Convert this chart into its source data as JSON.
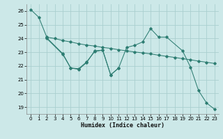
{
  "xlabel": "Humidex (Indice chaleur)",
  "xlim": [
    -0.5,
    23.5
  ],
  "ylim": [
    18.5,
    26.5
  ],
  "yticks": [
    19,
    20,
    21,
    22,
    23,
    24,
    25,
    26
  ],
  "xticks": [
    0,
    1,
    2,
    3,
    4,
    5,
    6,
    7,
    8,
    9,
    10,
    11,
    12,
    13,
    14,
    15,
    16,
    17,
    18,
    19,
    20,
    21,
    22,
    23
  ],
  "bg_color": "#cce8e8",
  "grid_color": "#aacfcf",
  "line_color": "#2d7d72",
  "line1_x": [
    0,
    1,
    2,
    3,
    4,
    5,
    6,
    7,
    8,
    9,
    10,
    11,
    12,
    13,
    14,
    15,
    16,
    17,
    18,
    19,
    20,
    21,
    22,
    23
  ],
  "line1_y": [
    26.1,
    25.55,
    24.1,
    24.0,
    23.85,
    23.75,
    23.62,
    23.52,
    23.45,
    23.35,
    23.28,
    23.18,
    23.1,
    23.02,
    22.95,
    22.88,
    22.78,
    22.7,
    22.62,
    22.53,
    22.45,
    22.35,
    22.27,
    22.18
  ],
  "line2_x": [
    2,
    4,
    5,
    6,
    7,
    8,
    9,
    10,
    11,
    12,
    13,
    14,
    15,
    16,
    17,
    19,
    20,
    21,
    22,
    23
  ],
  "line2_y": [
    24.05,
    22.9,
    21.85,
    21.8,
    22.3,
    23.05,
    23.15,
    21.35,
    21.85,
    23.35,
    23.5,
    23.75,
    24.72,
    24.1,
    24.1,
    23.1,
    21.9,
    20.2,
    19.3,
    18.85
  ],
  "line3_x": [
    2,
    4,
    5,
    6,
    7,
    8,
    9,
    10,
    11
  ],
  "line3_y": [
    24.0,
    22.85,
    21.85,
    21.75,
    22.25,
    23.1,
    23.15,
    21.35,
    21.85
  ]
}
